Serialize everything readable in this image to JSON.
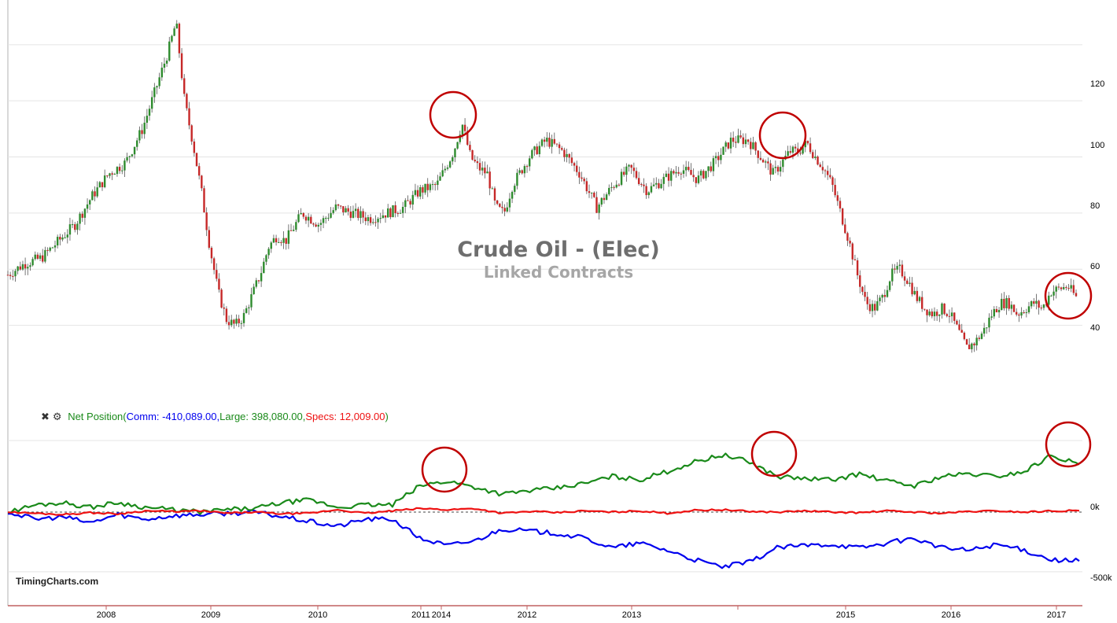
{
  "title": "Crude Oil - (Elec)",
  "subtitle": "Linked Contracts",
  "watermark": "TimingCharts.com",
  "legend": {
    "icons": [
      "close-icon",
      "gear-icon"
    ],
    "label": "Net Position",
    "open": "(",
    "comm": "Comm: -410,089.00",
    "sep1": ",",
    "large": "Large: 398,080.00",
    "sep2": ",",
    "specs": "Specs: 12,009.00",
    "close": ")"
  },
  "colors": {
    "up_candle": "#2e8b2e",
    "down_candle": "#c62828",
    "commercials": "#0000ee",
    "large_specs": "#1a8a1a",
    "small_specs": "#ee1111",
    "highlight_circle": "#c00000",
    "title": "#6e6e6e",
    "subtitle": "#a6a6a6"
  },
  "x_axis_labels": [
    "2008",
    "2009",
    "2010",
    "2011",
    "2014",
    "2012",
    "2013",
    "2015",
    "2016",
    "2017"
  ],
  "chart_data": [
    {
      "type": "candlestick",
      "title": "Crude Oil - (Elec)",
      "subtitle": "Linked Contracts",
      "y_ticks": [
        40,
        60,
        80,
        100,
        120
      ],
      "ylim": [
        27,
        152
      ],
      "grid": true,
      "x_labels": [
        "2008",
        "2009",
        "2010",
        "2011",
        "2014",
        "2012",
        "2013",
        "2015",
        "2016",
        "2017"
      ],
      "close_path": [
        [
          0,
          58
        ],
        [
          2,
          62
        ],
        [
          4,
          64
        ],
        [
          6,
          70
        ],
        [
          8,
          76
        ],
        [
          10,
          86
        ],
        [
          12,
          94
        ],
        [
          14,
          98
        ],
        [
          16,
          110
        ],
        [
          18,
          128
        ],
        [
          19,
          137
        ],
        [
          20,
          148
        ],
        [
          21,
          120
        ],
        [
          22,
          105
        ],
        [
          23,
          88
        ],
        [
          24,
          68
        ],
        [
          25,
          52
        ],
        [
          26,
          42
        ],
        [
          27,
          40
        ],
        [
          28,
          43
        ],
        [
          30,
          58
        ],
        [
          31,
          68
        ],
        [
          32,
          72
        ],
        [
          33,
          70
        ],
        [
          35,
          80
        ],
        [
          37,
          76
        ],
        [
          39,
          82
        ],
        [
          41,
          80
        ],
        [
          43,
          78
        ],
        [
          45,
          80
        ],
        [
          47,
          82
        ],
        [
          49,
          88
        ],
        [
          51,
          90
        ],
        [
          53,
          102
        ],
        [
          54,
          112
        ],
        [
          55,
          100
        ],
        [
          56,
          96
        ],
        [
          57,
          94
        ],
        [
          58,
          82
        ],
        [
          59,
          80
        ],
        [
          60,
          90
        ],
        [
          62,
          100
        ],
        [
          64,
          106
        ],
        [
          66,
          102
        ],
        [
          68,
          94
        ],
        [
          70,
          82
        ],
        [
          72,
          90
        ],
        [
          74,
          96
        ],
        [
          76,
          88
        ],
        [
          78,
          92
        ],
        [
          80,
          96
        ],
        [
          82,
          92
        ],
        [
          84,
          98
        ],
        [
          86,
          106
        ],
        [
          88,
          106
        ],
        [
          90,
          98
        ],
        [
          91,
          94
        ],
        [
          92,
          98
        ],
        [
          93,
          102
        ],
        [
          94,
          102
        ],
        [
          95,
          105
        ],
        [
          96,
          100
        ],
        [
          97,
          96
        ],
        [
          98,
          90
        ],
        [
          99,
          80
        ],
        [
          100,
          70
        ],
        [
          101,
          58
        ],
        [
          102,
          48
        ],
        [
          103,
          46
        ],
        [
          104,
          50
        ],
        [
          105,
          58
        ],
        [
          106,
          60
        ],
        [
          107,
          56
        ],
        [
          108,
          50
        ],
        [
          109,
          46
        ],
        [
          110,
          44
        ],
        [
          111,
          46
        ],
        [
          112,
          44
        ],
        [
          113,
          38
        ],
        [
          114,
          32
        ],
        [
          115,
          34
        ],
        [
          116,
          38
        ],
        [
          117,
          44
        ],
        [
          118,
          48
        ],
        [
          119,
          48
        ],
        [
          120,
          44
        ],
        [
          121,
          46
        ],
        [
          122,
          48
        ],
        [
          123,
          46
        ],
        [
          124,
          52
        ],
        [
          125,
          53
        ],
        [
          126,
          54
        ],
        [
          127,
          50
        ]
      ],
      "annotations": [
        "circle-2011-peak",
        "circle-2014-peak",
        "circle-2017-latest"
      ]
    },
    {
      "type": "line",
      "title": "Net Position",
      "y_ticks": [
        0,
        -500000
      ],
      "y_tick_labels": [
        "0k",
        "-500k"
      ],
      "ylim": [
        -600000,
        600000
      ],
      "reference_line": 0,
      "series": [
        {
          "name": "Comm",
          "last": -410089,
          "values": [
            0,
            -60000,
            -40000,
            -90000,
            -20000,
            -60000,
            -30000,
            -20000,
            -10000,
            0,
            -40000,
            -80000,
            -120000,
            -60000,
            -60000,
            -220000,
            -280000,
            -240000,
            -140000,
            -160000,
            -180000,
            -220000,
            -300000,
            -260000,
            -320000,
            -400000,
            -460000,
            -420000,
            -300000,
            -280000,
            -270000,
            -300000,
            -260000,
            -220000,
            -300000,
            -320000,
            -270000,
            -320000,
            -400000,
            -410089
          ]
        },
        {
          "name": "Large",
          "last": 398080,
          "values": [
            0,
            60000,
            80000,
            40000,
            80000,
            40000,
            20000,
            0,
            20000,
            30000,
            80000,
            100000,
            40000,
            60000,
            60000,
            220000,
            260000,
            210000,
            150000,
            180000,
            200000,
            240000,
            300000,
            270000,
            340000,
            420000,
            480000,
            420000,
            300000,
            280000,
            270000,
            320000,
            260000,
            220000,
            300000,
            320000,
            300000,
            340000,
            480000,
            398080
          ]
        },
        {
          "name": "Specs",
          "last": 12009,
          "values": [
            0,
            -10000,
            -20000,
            -5000,
            -15000,
            10000,
            5000,
            10000,
            -10000,
            0,
            -15000,
            -10000,
            20000,
            -10000,
            10000,
            30000,
            20000,
            30000,
            -10000,
            5000,
            -5000,
            10000,
            0,
            10000,
            -10000,
            15000,
            20000,
            5000,
            0,
            10000,
            0,
            -5000,
            10000,
            0,
            -10000,
            5000,
            10000,
            0,
            10000,
            12009
          ]
        }
      ]
    }
  ]
}
